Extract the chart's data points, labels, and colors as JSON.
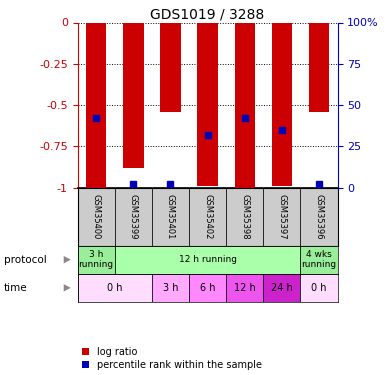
{
  "title": "GDS1019 / 3288",
  "samples": [
    "GSM35400",
    "GSM35399",
    "GSM35401",
    "GSM35402",
    "GSM35398",
    "GSM35397",
    "GSM35396"
  ],
  "log_ratios": [
    -1.0,
    -0.88,
    -0.54,
    -0.99,
    -1.0,
    -0.99,
    -0.54
  ],
  "percentile_ranks": [
    42,
    2,
    2,
    32,
    42,
    35,
    2
  ],
  "ylim_left": [
    -1.0,
    0.0
  ],
  "ylim_right": [
    0,
    100
  ],
  "yticks_left": [
    0,
    -0.25,
    -0.5,
    -0.75,
    -1.0
  ],
  "yticks_left_labels": [
    "0",
    "-0.25",
    "-0.5",
    "-0.75",
    "-1"
  ],
  "yticks_right": [
    0,
    25,
    50,
    75,
    100
  ],
  "yticks_right_labels": [
    "0",
    "25",
    "50",
    "75",
    "100%"
  ],
  "bar_color": "#cc0000",
  "dot_color": "#0000bb",
  "protocol_items": [
    {
      "label": "3 h\nrunning",
      "start": 0,
      "end": 1,
      "color": "#99ee99"
    },
    {
      "label": "12 h running",
      "start": 1,
      "end": 6,
      "color": "#aaffaa"
    },
    {
      "label": "4 wks\nrunning",
      "start": 6,
      "end": 7,
      "color": "#99ee99"
    }
  ],
  "time_items": [
    {
      "label": "0 h",
      "start": 0,
      "end": 2,
      "color": "#ffddff"
    },
    {
      "label": "3 h",
      "start": 2,
      "end": 3,
      "color": "#ffaaff"
    },
    {
      "label": "6 h",
      "start": 3,
      "end": 4,
      "color": "#ff88ff"
    },
    {
      "label": "12 h",
      "start": 4,
      "end": 5,
      "color": "#ee55ee"
    },
    {
      "label": "24 h",
      "start": 5,
      "end": 6,
      "color": "#cc22cc"
    },
    {
      "label": "0 h",
      "start": 6,
      "end": 7,
      "color": "#ffddff"
    }
  ],
  "sample_bg_color": "#cccccc",
  "left_axis_color": "#cc0000",
  "right_axis_color": "#0000bb",
  "bar_width": 0.55
}
